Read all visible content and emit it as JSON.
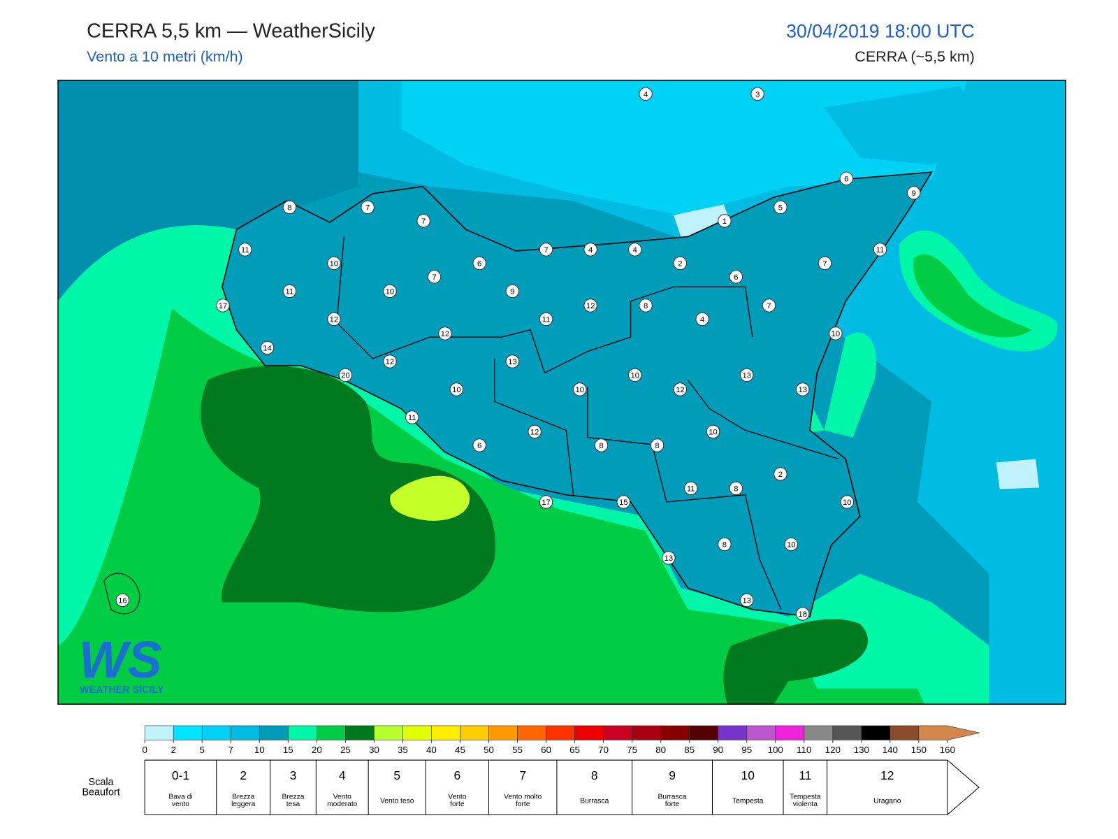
{
  "header": {
    "title": "CERRA 5,5 km — WeatherSicily",
    "subtitle": "Vento a 10 metri (km/h)",
    "datetime": "30/04/2019 18:00 UTC",
    "model": "CERRA (~5,5 km)"
  },
  "logo": {
    "mark": "WS",
    "text": "WEATHER SICILY"
  },
  "stations": {
    "values": [
      4,
      3,
      6,
      9,
      8,
      7,
      7,
      1,
      5,
      11,
      7,
      4,
      4,
      11,
      10,
      6,
      2,
      6,
      7,
      7,
      11,
      10,
      9,
      17,
      12,
      8,
      7,
      12,
      11,
      4,
      12,
      10,
      14,
      12,
      13,
      20,
      10,
      13,
      10,
      10,
      12,
      13,
      11,
      10,
      6,
      12,
      8,
      8,
      2,
      11,
      8,
      17,
      15,
      10,
      8,
      10,
      13,
      13,
      18,
      16
    ]
  },
  "colorbar": {
    "ticks": [
      0,
      2,
      5,
      7,
      10,
      15,
      20,
      25,
      30,
      35,
      40,
      45,
      50,
      55,
      60,
      65,
      70,
      75,
      80,
      85,
      90,
      95,
      100,
      110,
      120,
      130,
      140,
      150,
      160
    ],
    "colors": [
      "#c0f2fb",
      "#00e5ff",
      "#00d2f6",
      "#00bce3",
      "#009dbb",
      "#00f7a8",
      "#00cc44",
      "#007a1e",
      "#b8ff30",
      "#e2ff00",
      "#ffee00",
      "#ffcc00",
      "#ff9900",
      "#ff6600",
      "#ff3300",
      "#ee0000",
      "#cc0022",
      "#aa0011",
      "#880000",
      "#550000",
      "#7733cc",
      "#bb55cc",
      "#ee22dd",
      "#888888",
      "#555555",
      "#000000",
      "#8b4a2b",
      "#d4874a"
    ]
  },
  "beaufort": {
    "title": [
      "Scala",
      "Beaufort"
    ],
    "entries": [
      {
        "force": "0-1",
        "label": [
          "Bava di",
          "vento"
        ]
      },
      {
        "force": "2",
        "label": [
          "Brezza",
          "leggera"
        ]
      },
      {
        "force": "3",
        "label": [
          "Brezza",
          "tesa"
        ]
      },
      {
        "force": "4",
        "label": [
          "Vento",
          "moderato"
        ]
      },
      {
        "force": "5",
        "label": [
          "Vento teso"
        ]
      },
      {
        "force": "6",
        "label": [
          "Vento",
          "forte"
        ]
      },
      {
        "force": "7",
        "label": [
          "Vento molto",
          "forte"
        ]
      },
      {
        "force": "8",
        "label": [
          "Burrasca"
        ]
      },
      {
        "force": "9",
        "label": [
          "Burrasca",
          "forte"
        ]
      },
      {
        "force": "10",
        "label": [
          "Tempesta"
        ]
      },
      {
        "force": "11",
        "label": [
          "Tempesta",
          "violenta"
        ]
      },
      {
        "force": "12",
        "label": [
          "Uragano"
        ]
      }
    ]
  }
}
